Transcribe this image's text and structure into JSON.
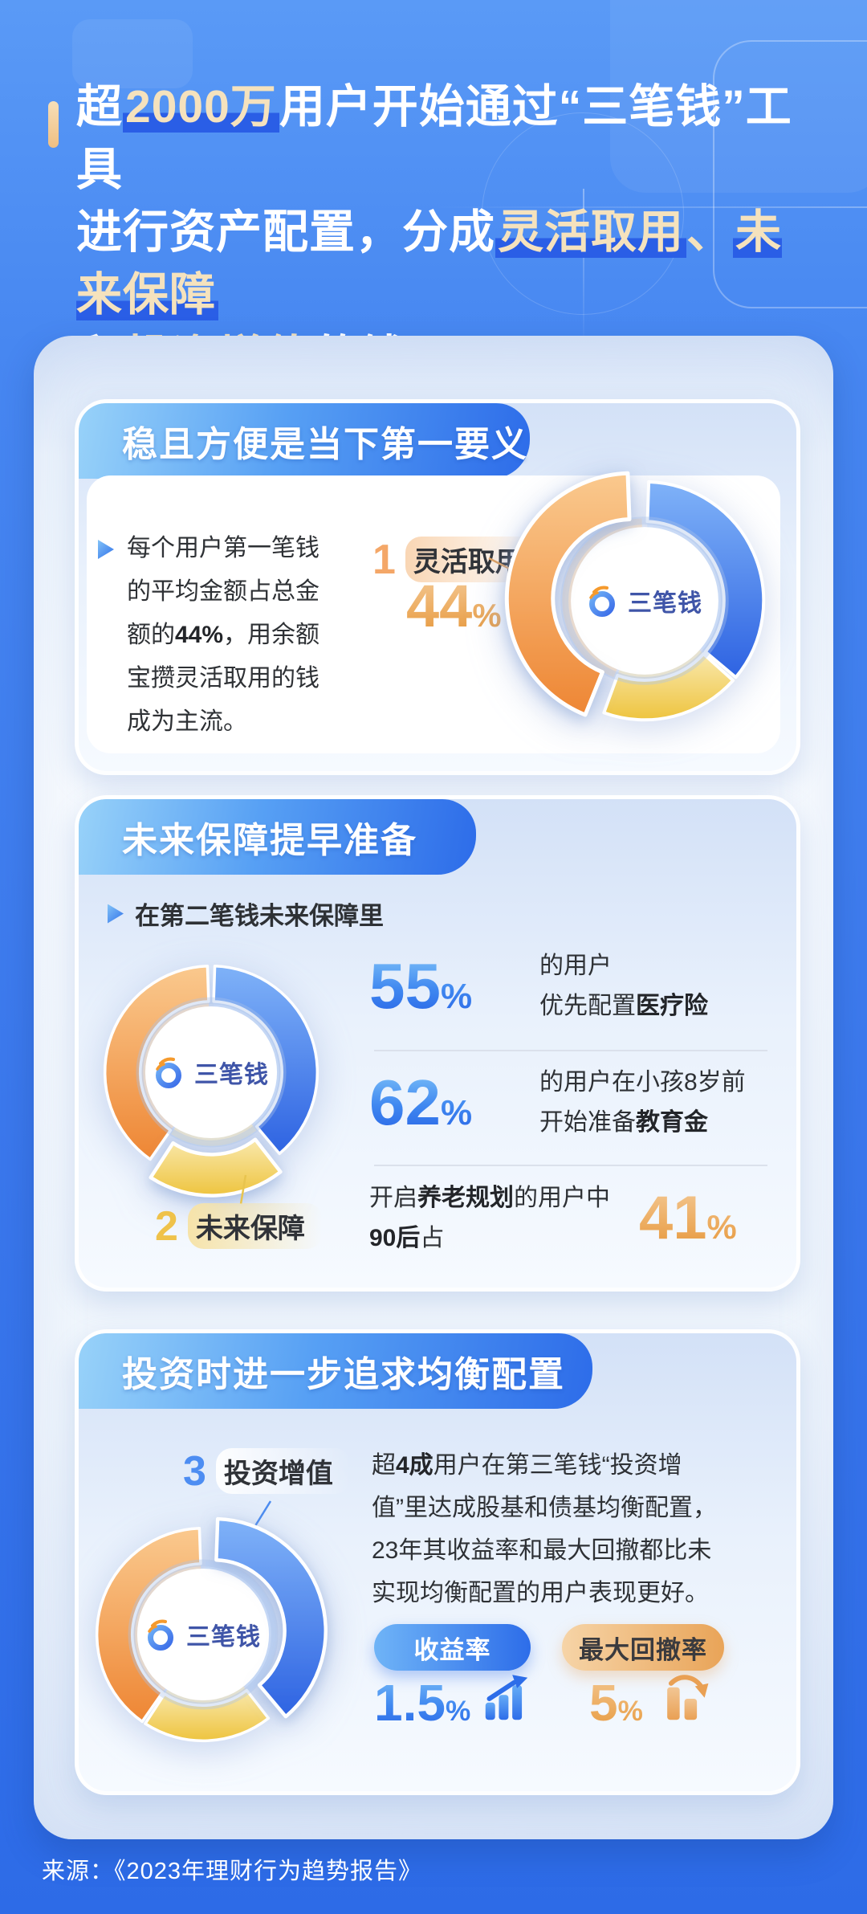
{
  "colors": {
    "page_bg_top": "#5A9AF6",
    "page_bg_bottom": "#2D6BE7",
    "header_grad_left": "#98D2F9",
    "header_grad_right": "#2D6CE9",
    "title_highlight_bar": "#2A5EE6",
    "title_cream": "#F5E2BD",
    "orange": "#EE8634",
    "orange_light": "#FAC98E",
    "blue": "#2E63E2",
    "blue_light": "#7FB2F8",
    "yellow": "#EEC43F",
    "yellow_light": "#F9E8AC",
    "ghost_orange": "#F6D9B8",
    "ghost_blue": "#C3D8F8",
    "ghost_yellow": "#F4E6BC",
    "num_blue": "#2A66E6",
    "num_orange": "#E6993F",
    "logo_text_color": "#3F55A8",
    "logo_swoosh": "#F59A2D"
  },
  "title": {
    "line1": {
      "pre": "超",
      "hl": "2000万",
      "post": "用户开始通过“三笔钱”工具"
    },
    "line2": {
      "pre": "进行资产配置，分成",
      "hl1": "灵活取用",
      "sep": "、",
      "hl2": "未来保障"
    },
    "line3": {
      "pre": "和",
      "hl": "投资增值",
      "post": "的钱"
    }
  },
  "brand": {
    "name": "三笔钱"
  },
  "cards": [
    {
      "header": "稳且方便是当下第一要义",
      "para": {
        "pre": "每个用户第一笔钱的平均金额占总金额的",
        "strong": "44%",
        "post": "，用余额宝攒灵活取用的钱成为主流。"
      },
      "label": {
        "num": "1",
        "text": "灵活取用"
      },
      "value": {
        "num": "44",
        "unit": "%"
      }
    },
    {
      "header": "未来保障提早准备",
      "bullet": "在第二笔钱未来保障里",
      "label": {
        "num": "2",
        "text": "未来保障"
      },
      "stats": [
        {
          "value": "55",
          "unit": "%",
          "line1": "的用户",
          "line2_pre": "优先配置",
          "line2_strong": "医疗险"
        },
        {
          "value": "62",
          "unit": "%",
          "line1": "的用户在小孩8岁前",
          "line2_pre": "开始准备",
          "line2_strong": "教育金"
        },
        {
          "line1_pre": "开启",
          "line1_strong": "养老规划",
          "line1_post": "的用户中",
          "line2_strong": "90后",
          "line2_post": "占",
          "value": "41",
          "unit": "%"
        }
      ]
    },
    {
      "header": "投资时进一步追求均衡配置",
      "label": {
        "num": "3",
        "text": "投资增值"
      },
      "para": {
        "pre": "超",
        "strong": "4成",
        "post": "用户在第三笔钱“投资增值”里达成股基和债基均衡配置，23年其收益率和最大回撤都比未实现均衡配置的用户表现更好。"
      },
      "metrics": [
        {
          "pill": "收益率",
          "value": "1.5",
          "unit": "%"
        },
        {
          "pill": "最大回撤率",
          "value": "5",
          "unit": "%"
        }
      ]
    }
  ],
  "footer": {
    "source": "来源：《2023年理财行为趋势报告》"
  },
  "chart_data": [
    {
      "type": "pie",
      "title": "稳且方便是当下第一要义",
      "center_label": "三笔钱",
      "highlight": {
        "index_label": "1",
        "name": "灵活取用",
        "value_pct": 44
      },
      "segments": [
        {
          "name": "投资增值",
          "color": "blue",
          "pct_est": 36,
          "start_deg": 2,
          "end_deg": 130,
          "exploded": false
        },
        {
          "name": "未来保障",
          "color": "yellow",
          "pct_est": 20,
          "start_deg": 132,
          "end_deg": 200,
          "exploded": false
        },
        {
          "name": "灵活取用",
          "color": "orange",
          "pct_est": 44,
          "start_deg": 202,
          "end_deg": 358,
          "exploded": true
        }
      ]
    },
    {
      "type": "pie",
      "title": "未来保障提早准备",
      "center_label": "三笔钱",
      "highlight": {
        "index_label": "2",
        "name": "未来保障"
      },
      "segments": [
        {
          "name": "投资增值",
          "color": "blue",
          "pct_est": 39,
          "start_deg": 2,
          "end_deg": 140,
          "exploded": false
        },
        {
          "name": "未来保障",
          "color": "yellow",
          "pct_est": 20,
          "start_deg": 142,
          "end_deg": 213,
          "exploded": true
        },
        {
          "name": "灵活取用",
          "color": "orange",
          "pct_est": 41,
          "start_deg": 215,
          "end_deg": 358,
          "exploded": false
        }
      ]
    },
    {
      "type": "pie",
      "title": "投资时进一步追求均衡配置",
      "center_label": "三笔钱",
      "highlight": {
        "index_label": "3",
        "name": "投资增值"
      },
      "segments": [
        {
          "name": "投资增值",
          "color": "blue",
          "pct_est": 39,
          "start_deg": 2,
          "end_deg": 140,
          "exploded": true
        },
        {
          "name": "未来保障",
          "color": "yellow",
          "pct_est": 20,
          "start_deg": 142,
          "end_deg": 213,
          "exploded": false
        },
        {
          "name": "灵活取用",
          "color": "orange",
          "pct_est": 41,
          "start_deg": 215,
          "end_deg": 358,
          "exploded": false
        }
      ]
    }
  ]
}
